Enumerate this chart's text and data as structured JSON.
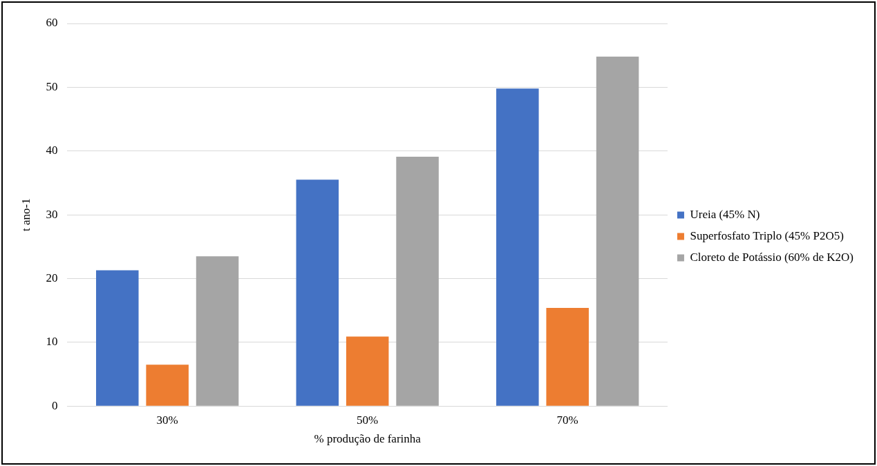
{
  "chart_data": {
    "type": "bar",
    "xlabel": "% produção de farinha",
    "ylabel": "t ano-1",
    "categories": [
      "30%",
      "50%",
      "70%"
    ],
    "series": [
      {
        "name": "Ureia (45% N)",
        "color": "#4472c4",
        "values": [
          21.3,
          35.5,
          49.8
        ]
      },
      {
        "name": "Superfosfato Triplo (45% P2O5)",
        "color": "#ed7d31",
        "values": [
          6.5,
          10.9,
          15.4
        ]
      },
      {
        "name": "Cloreto de Potássio (60% de K2O)",
        "color": "#a5a5a5",
        "values": [
          23.5,
          39.1,
          54.8
        ]
      }
    ],
    "ylim": [
      0,
      60
    ],
    "yticks": [
      0,
      10,
      20,
      30,
      40,
      50,
      60
    ],
    "grid": "y",
    "legend": "right"
  }
}
